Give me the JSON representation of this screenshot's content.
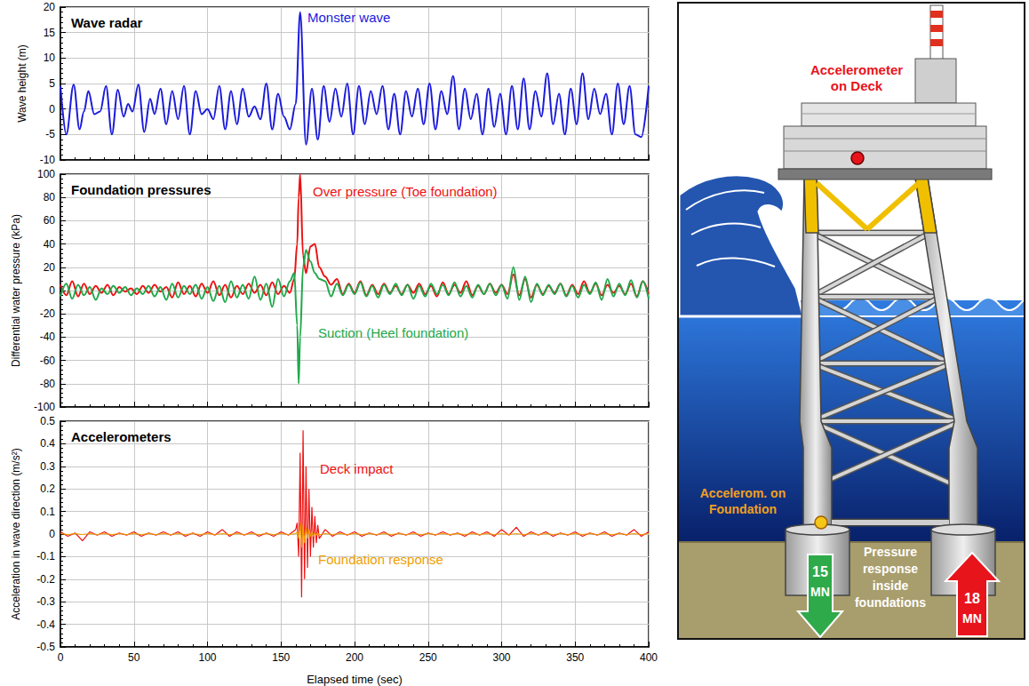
{
  "chart_data": [
    {
      "type": "line",
      "title": "Wave radar",
      "ylabel": "Wave height (m)",
      "x": [
        0,
        4,
        9,
        13,
        16,
        19,
        23,
        27,
        31,
        35,
        39,
        43,
        46,
        49,
        53,
        57,
        61,
        64,
        68,
        72,
        76,
        80,
        84,
        88,
        92,
        96,
        100,
        104,
        108,
        112,
        116,
        120,
        124,
        128,
        132,
        136,
        140,
        144,
        148,
        152,
        156,
        160,
        163,
        167,
        171,
        175,
        179,
        183,
        187,
        191,
        195,
        199,
        203,
        207,
        211,
        215,
        219,
        223,
        227,
        231,
        235,
        239,
        243,
        247,
        251,
        255,
        259,
        263,
        267,
        271,
        275,
        279,
        283,
        287,
        291,
        295,
        299,
        303,
        307,
        311,
        315,
        319,
        323,
        327,
        331,
        335,
        339,
        343,
        347,
        351,
        355,
        359,
        363,
        367,
        371,
        375,
        379,
        383,
        387,
        391,
        395,
        400
      ],
      "values": [
        4.5,
        -5,
        4.8,
        -4,
        -0.5,
        3.5,
        -1,
        -0.5,
        4.5,
        -5,
        3.8,
        -1.5,
        1,
        -0.5,
        4.8,
        -4.5,
        2,
        -1,
        4,
        -3,
        3.5,
        -2,
        4.5,
        -5,
        3.5,
        -1,
        0,
        -2,
        4.5,
        -4,
        3.5,
        -3,
        4,
        -1.5,
        0.5,
        -2,
        5,
        -4,
        3,
        -1.5,
        -4,
        1,
        19,
        -7,
        4,
        -6,
        4.5,
        -2.5,
        4,
        -1.5,
        5,
        -5,
        4.5,
        -3,
        3.5,
        -1,
        4.5,
        -4,
        3,
        -5,
        3.5,
        -1.5,
        4,
        -3,
        5,
        -4,
        3.5,
        -1,
        6.5,
        -4,
        4,
        -2,
        3,
        -5,
        4,
        -3.5,
        3,
        -5,
        4.5,
        -4,
        6,
        -4,
        3.5,
        -1.5,
        7,
        -3,
        3,
        -5,
        4,
        -3,
        7,
        -2,
        4,
        -1,
        3,
        -5,
        5,
        -3,
        4.5,
        -5,
        -5.5,
        4.5
      ],
      "color": "#1a1adc",
      "xlim": [
        0,
        400
      ],
      "xticks": [
        0,
        50,
        100,
        150,
        200,
        250,
        300,
        350,
        400
      ],
      "ylim": [
        -10,
        20
      ],
      "yticks": [
        -10,
        -5,
        0,
        5,
        10,
        15,
        20
      ],
      "grid": true,
      "tick_labels": "y",
      "annotations": [
        {
          "text": "Monster wave",
          "color": "#1a1adc"
        }
      ]
    },
    {
      "type": "line",
      "title": "Foundation pressures",
      "ylabel": "Differential water pressure (kPa)",
      "x": [
        0,
        4,
        8,
        12,
        16,
        20,
        24,
        28,
        32,
        36,
        40,
        44,
        48,
        52,
        56,
        60,
        64,
        68,
        72,
        76,
        80,
        84,
        88,
        92,
        96,
        100,
        104,
        108,
        112,
        116,
        120,
        124,
        128,
        132,
        136,
        140,
        144,
        148,
        152,
        156,
        159,
        161,
        162,
        163,
        165,
        167,
        170,
        173,
        176,
        180,
        184,
        188,
        192,
        196,
        200,
        204,
        208,
        212,
        216,
        220,
        224,
        228,
        232,
        236,
        240,
        244,
        248,
        252,
        256,
        260,
        264,
        268,
        272,
        276,
        280,
        284,
        288,
        292,
        296,
        300,
        304,
        308,
        312,
        316,
        320,
        324,
        328,
        332,
        336,
        340,
        344,
        348,
        352,
        356,
        360,
        364,
        368,
        372,
        376,
        380,
        384,
        388,
        392,
        396,
        400
      ],
      "series": [
        {
          "name": "Over pressure (Toe foundation)",
          "color": "#ee1111",
          "values": [
            5,
            -4,
            8,
            -5,
            6,
            -3,
            4,
            -2,
            5,
            -4,
            3,
            -1,
            2,
            -3,
            4,
            -2,
            5,
            -1,
            3,
            -6,
            7,
            -3,
            4,
            -5,
            6,
            -2,
            8,
            -4,
            5,
            -6,
            4,
            -3,
            6,
            -2,
            5,
            -4,
            7,
            -3,
            4,
            -2,
            10,
            40,
            80,
            100,
            30,
            15,
            38,
            40,
            20,
            12,
            5,
            10,
            -3,
            6,
            -2,
            8,
            -4,
            5,
            -3,
            6,
            -2,
            4,
            -3,
            5,
            -2,
            6,
            -3,
            4,
            -5,
            7,
            -3,
            5,
            -2,
            8,
            -4,
            4,
            -3,
            6,
            -2,
            5,
            -3,
            14,
            -4,
            10,
            -6,
            5,
            -3,
            4,
            -2,
            6,
            -4,
            5,
            -3,
            8,
            -2,
            6,
            -4,
            5,
            -2,
            4,
            -3,
            6,
            -5,
            8,
            -3
          ]
        },
        {
          "name": "Suction (Heel foundation)",
          "color": "#1fa84a",
          "values": [
            -5,
            6,
            -7,
            5,
            -4,
            3,
            -8,
            2,
            -3,
            4,
            -2,
            3,
            -4,
            2,
            -3,
            4,
            -5,
            3,
            -8,
            6,
            -6,
            4,
            -3,
            5,
            -7,
            3,
            -9,
            4,
            -10,
            8,
            -6,
            5,
            -7,
            12,
            -8,
            6,
            -14,
            10,
            -5,
            8,
            15,
            -30,
            -80,
            -40,
            20,
            35,
            25,
            15,
            10,
            8,
            -5,
            6,
            -4,
            5,
            -3,
            7,
            -5,
            4,
            -6,
            5,
            -3,
            6,
            -4,
            5,
            -7,
            4,
            -5,
            6,
            -3,
            5,
            -4,
            7,
            -5,
            4,
            -6,
            5,
            -3,
            6,
            -4,
            5,
            -7,
            20,
            -8,
            12,
            -10,
            6,
            -4,
            5,
            -3,
            6,
            -5,
            4,
            -6,
            5,
            -3,
            7,
            -8,
            10,
            -5,
            6,
            -4,
            9,
            -6,
            8,
            -7
          ]
        }
      ],
      "xlim": [
        0,
        400
      ],
      "xticks": [
        0,
        50,
        100,
        150,
        200,
        250,
        300,
        350,
        400
      ],
      "ylim": [
        -100,
        100
      ],
      "yticks": [
        -100,
        -80,
        -60,
        -40,
        -20,
        0,
        20,
        40,
        60,
        80,
        100
      ],
      "grid": true,
      "tick_labels": "y"
    },
    {
      "type": "line",
      "title": "Accelerometers",
      "xlabel": "Elapsed time (sec)",
      "ylabel": "Acceleration in wave direction (m/s²)",
      "x": [
        0,
        5,
        10,
        15,
        20,
        25,
        30,
        35,
        40,
        45,
        50,
        55,
        60,
        65,
        70,
        75,
        80,
        85,
        90,
        95,
        100,
        105,
        110,
        115,
        120,
        125,
        130,
        135,
        140,
        145,
        150,
        155,
        160,
        161,
        162,
        163,
        164,
        165,
        166,
        167,
        168,
        169,
        170,
        171,
        172,
        173,
        174,
        175,
        176,
        180,
        185,
        190,
        195,
        200,
        205,
        210,
        215,
        220,
        225,
        230,
        235,
        240,
        245,
        250,
        255,
        260,
        265,
        270,
        275,
        280,
        285,
        290,
        295,
        300,
        305,
        310,
        315,
        320,
        325,
        330,
        335,
        340,
        345,
        350,
        355,
        360,
        365,
        370,
        375,
        380,
        385,
        390,
        395,
        400
      ],
      "series": [
        {
          "name": "Deck impact",
          "color": "#ee1111",
          "values": [
            0.01,
            -0.01,
            0.005,
            -0.03,
            0.01,
            -0.005,
            0.01,
            -0.01,
            0.005,
            -0.005,
            0.01,
            -0.01,
            0.005,
            -0.005,
            0.01,
            -0.005,
            0.01,
            -0.01,
            0.005,
            -0.01,
            0.01,
            -0.005,
            0.02,
            -0.01,
            0.01,
            -0.005,
            0.01,
            -0.01,
            0.005,
            -0.01,
            0.01,
            -0.005,
            0.02,
            0.05,
            -0.1,
            0.36,
            -0.28,
            0.46,
            -0.2,
            0.3,
            -0.15,
            0.2,
            -0.1,
            0.12,
            -0.06,
            0.08,
            -0.04,
            0.04,
            -0.02,
            0.02,
            -0.01,
            0.01,
            -0.005,
            0.01,
            -0.01,
            0.005,
            -0.005,
            0.01,
            -0.01,
            0.005,
            -0.005,
            0.01,
            -0.01,
            0.005,
            -0.005,
            0.01,
            -0.005,
            0.005,
            -0.01,
            0.01,
            -0.005,
            0.01,
            -0.01,
            0.02,
            -0.005,
            0.03,
            -0.01,
            0.01,
            -0.005,
            0.01,
            -0.01,
            0.005,
            -0.005,
            0.01,
            -0.01,
            0.005,
            -0.005,
            0.01,
            -0.01,
            0.005,
            -0.005,
            0.02,
            -0.01,
            0.01
          ]
        },
        {
          "name": "Foundation response",
          "color": "#f0a000",
          "values": [
            0.002,
            -0.002,
            0.002,
            -0.002,
            0.002,
            -0.002,
            0.002,
            -0.002,
            0.002,
            -0.002,
            0.002,
            -0.002,
            0.002,
            -0.002,
            0.002,
            -0.002,
            0.002,
            -0.002,
            0.002,
            -0.002,
            0.002,
            -0.002,
            0.002,
            -0.002,
            0.002,
            -0.002,
            0.002,
            -0.002,
            0.002,
            -0.002,
            0.002,
            -0.002,
            0.002,
            0.01,
            -0.02,
            0.05,
            -0.06,
            0.04,
            -0.04,
            0.03,
            -0.02,
            0.02,
            -0.01,
            0.01,
            -0.01,
            0.005,
            -0.005,
            0.003,
            -0.003,
            0.002,
            -0.002,
            0.002,
            -0.002,
            0.002,
            -0.002,
            0.002,
            -0.002,
            0.002,
            -0.002,
            0.002,
            -0.002,
            0.002,
            -0.002,
            0.002,
            -0.002,
            0.002,
            -0.002,
            0.002,
            -0.002,
            0.002,
            -0.002,
            0.002,
            -0.002,
            0.002,
            -0.002,
            0.002,
            -0.002,
            0.002,
            -0.002,
            0.002,
            -0.002,
            0.002,
            -0.002,
            0.002,
            -0.002,
            0.002,
            -0.002,
            0.002,
            -0.002,
            0.002,
            -0.002,
            0.002,
            -0.002,
            0.002
          ]
        }
      ],
      "xlim": [
        0,
        400
      ],
      "xticks": [
        0,
        50,
        100,
        150,
        200,
        250,
        300,
        350,
        400
      ],
      "ylim": [
        -0.5,
        0.5
      ],
      "yticks": [
        -0.5,
        -0.4,
        -0.3,
        -0.2,
        -0.1,
        0,
        0.1,
        0.2,
        0.3,
        0.4,
        0.5
      ],
      "grid": true
    }
  ],
  "diagram": {
    "labels": {
      "deck_accelerometer": {
        "text": "Accelerometer on Deck",
        "color": "#e8141c"
      },
      "foundation_accelerometer": {
        "text": "Accelerom. on Foundation",
        "color": "#f0a020"
      },
      "foundation_pressure": {
        "text": "Pressure response inside foundations",
        "color": "#ffffff"
      }
    },
    "forces": [
      {
        "value": 15,
        "unit": "MN",
        "direction": "down",
        "color": "#2eaa4a"
      },
      {
        "value": 18,
        "unit": "MN",
        "direction": "up",
        "color": "#e8141c"
      }
    ]
  }
}
